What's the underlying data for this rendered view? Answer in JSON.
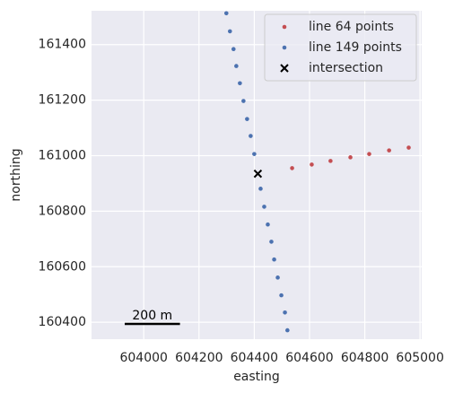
{
  "chart_data": {
    "type": "scatter",
    "xlabel": "easting",
    "ylabel": "northing",
    "xlim": [
      603811,
      605006
    ],
    "ylim": [
      160339,
      161522
    ],
    "xticks": [
      604000,
      604200,
      604400,
      604600,
      604800,
      605000
    ],
    "yticks": [
      160400,
      160600,
      160800,
      161000,
      161200,
      161400
    ],
    "grid": true,
    "legend": "upper right",
    "series": [
      {
        "name": "line 64 points",
        "color": "#c44e52",
        "marker": "o",
        "x": [
          604537,
          604608,
          604676,
          604748,
          604816,
          604888,
          604959
        ],
        "values": [
          160955,
          160968,
          160981,
          160994,
          161006,
          161019,
          161029
        ]
      },
      {
        "name": "line 149 points",
        "color": "#4c72b0",
        "marker": "o",
        "x": [
          604299,
          604312,
          604325,
          604335,
          604348,
          604361,
          604374,
          604387,
          604400,
          604423,
          604436,
          604449,
          604462,
          604472,
          604485,
          604498,
          604511,
          604520
        ],
        "values": [
          161513,
          161448,
          161384,
          161323,
          161261,
          161197,
          161132,
          161071,
          161006,
          160881,
          160816,
          160752,
          160690,
          160626,
          160561,
          160497,
          160435,
          160371
        ]
      },
      {
        "name": "intersection",
        "color": "#000000",
        "marker": "x",
        "x": [
          604413
        ],
        "values": [
          160935
        ]
      }
    ],
    "scale_bar": {
      "length": 200,
      "label": "200 m"
    }
  }
}
